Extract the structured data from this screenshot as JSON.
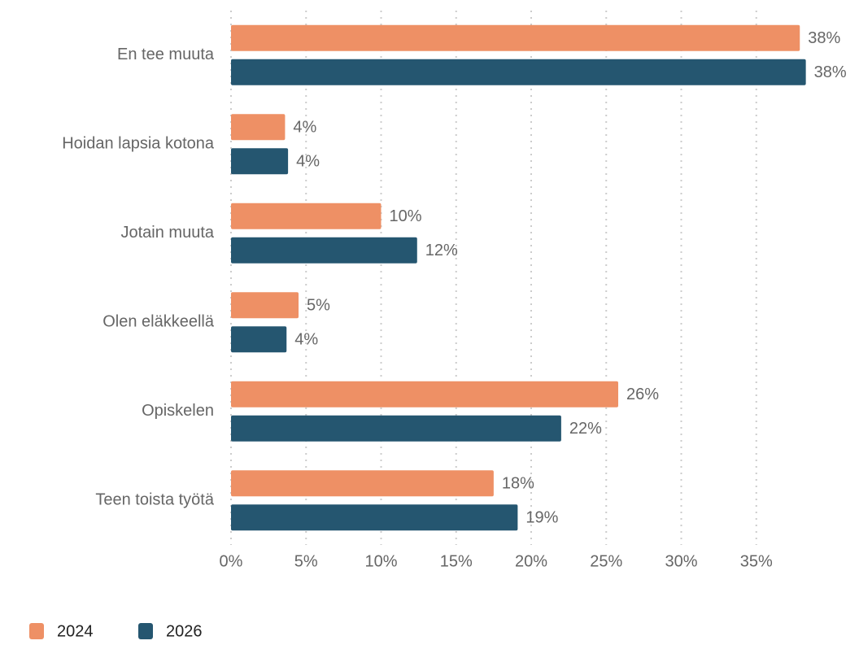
{
  "chart_data": {
    "type": "hbar",
    "categories": [
      "En tee muuta",
      "Hoidan lapsia kotona",
      "Jotain muuta",
      "Olen eläkkeellä",
      "Opiskelen",
      "Teen toista työtä"
    ],
    "series": [
      {
        "name": "2024",
        "color": "#ee9065",
        "values": [
          37.9,
          3.6,
          10.0,
          4.5,
          25.8,
          17.5
        ],
        "value_labels": [
          "38%",
          "4%",
          "10%",
          "5%",
          "26%",
          "18%"
        ]
      },
      {
        "name": "2026",
        "color": "#255670",
        "values": [
          38.3,
          3.8,
          12.4,
          3.7,
          22.0,
          19.1
        ],
        "value_labels": [
          "38%",
          "4%",
          "12%",
          "4%",
          "22%",
          "19%"
        ]
      }
    ],
    "xlim": [
      0,
      39
    ],
    "xticks": [
      {
        "value": 0,
        "label": "0%"
      },
      {
        "value": 5,
        "label": "5%"
      },
      {
        "value": 10,
        "label": "10%"
      },
      {
        "value": 15,
        "label": "15%"
      },
      {
        "value": 20,
        "label": "20%"
      },
      {
        "value": 25,
        "label": "25%"
      },
      {
        "value": 30,
        "label": "30%"
      },
      {
        "value": 35,
        "label": "35%"
      }
    ],
    "grid": true,
    "legend": "bottom-left"
  }
}
